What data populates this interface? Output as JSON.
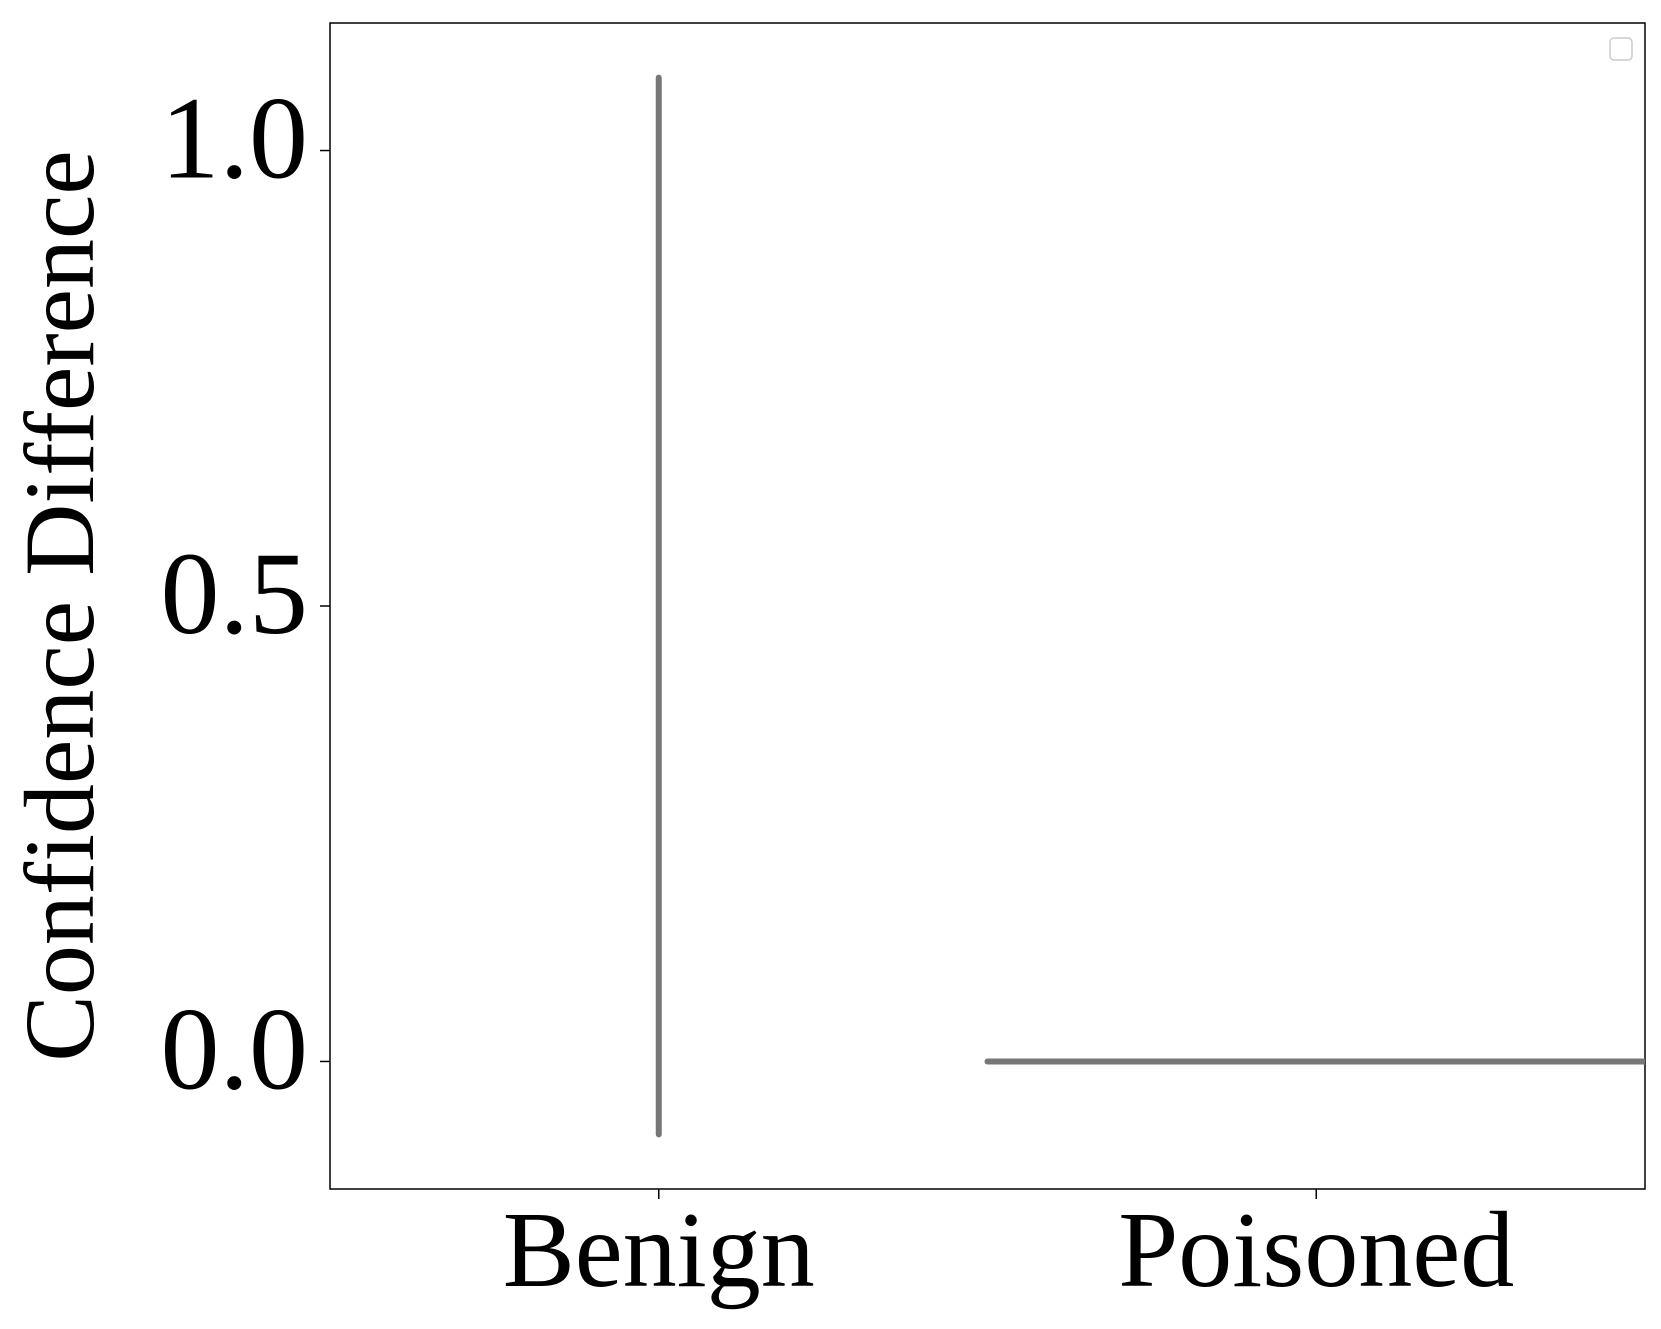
{
  "chart_data": {
    "type": "violin",
    "ylabel": "Confidence Difference",
    "categories": [
      "Benign",
      "Poisoned"
    ],
    "min": [
      -0.08,
      0
    ],
    "max": [
      1.08,
      0
    ],
    "color": "#777777",
    "ylim": [
      -0.14,
      1.14
    ],
    "yticks": [
      {
        "value": 0,
        "label": "0.0"
      },
      0.5,
      {
        "value": 1,
        "label": "1.0"
      }
    ]
  }
}
